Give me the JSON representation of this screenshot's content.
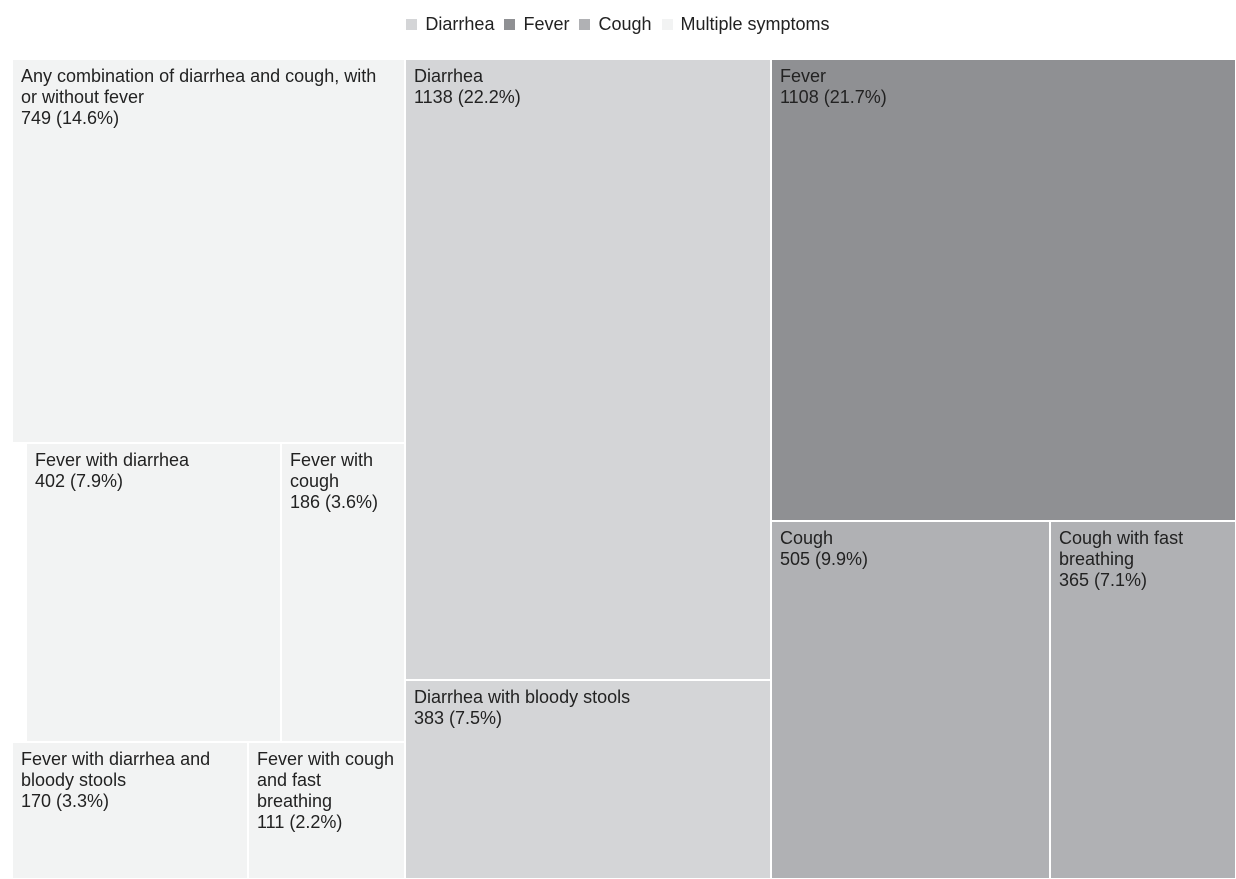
{
  "chart_data": {
    "type": "treemap",
    "title": "",
    "legend": {
      "placement": "top-center",
      "items": [
        {
          "label": "Diarrhea",
          "color": "#d4d5d7"
        },
        {
          "label": "Fever",
          "color": "#8f9093"
        },
        {
          "label": "Cough",
          "color": "#b0b1b4"
        },
        {
          "label": "Multiple symptoms",
          "color": "#f2f3f3"
        }
      ]
    },
    "cells": [
      {
        "label": "Any combination of diarrhea and cough, with or without fever",
        "value": 749,
        "text": "749 (14.6%)",
        "group": "Multiple symptoms"
      },
      {
        "label": "Fever with diarrhea",
        "value": 402,
        "text": "402 (7.9%)",
        "group": "Multiple symptoms"
      },
      {
        "label": "Fever with cough",
        "value": 186,
        "text": "186 (3.6%)",
        "group": "Multiple symptoms"
      },
      {
        "label": "Fever with diarrhea and bloody stools",
        "value": 170,
        "text": "170 (3.3%)",
        "group": "Multiple symptoms"
      },
      {
        "label": "Fever with cough and fast breathing",
        "value": 111,
        "text": "111 (2.2%)",
        "group": "Multiple symptoms"
      },
      {
        "label": "Diarrhea",
        "value": 1138,
        "text": "1138 (22.2%)",
        "group": "Diarrhea"
      },
      {
        "label": "Diarrhea with bloody stools",
        "value": 383,
        "text": "383 (7.5%)",
        "group": "Diarrhea"
      },
      {
        "label": "Fever",
        "value": 1108,
        "text": "1108 (21.7%)",
        "group": "Fever"
      },
      {
        "label": "Cough",
        "value": 505,
        "text": "505 (9.9%)",
        "group": "Cough"
      },
      {
        "label": "Cough with fast breathing",
        "value": 365,
        "text": "365 (7.1%)",
        "group": "Cough"
      }
    ]
  }
}
